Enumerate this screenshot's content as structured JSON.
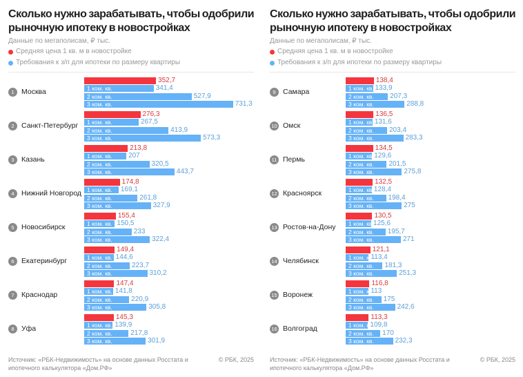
{
  "colors": {
    "price": "#f4353e",
    "salary": "#65b2f7",
    "price_text": "#d83a3a",
    "salary_text": "#5b9fd8"
  },
  "chart_data": [
    {
      "type": "bar",
      "orientation": "horizontal",
      "title": "Сколько нужно зарабатывать, чтобы одобрили рыночную ипотеку в новостройках",
      "subtitle": "Данные по мегаполисам, ₽ тыс.",
      "legend": [
        "Средняя цена 1 кв. м в новостройке",
        "Требования к з/п для ипотеки по размеру квартиры"
      ],
      "bar_labels": [
        "",
        "1 ком. кв.",
        "2 ком. кв.",
        "3 ком. кв."
      ],
      "groups": [
        {
          "rank": "1",
          "city": "Москва",
          "values": [
            "352,7",
            "341,4",
            "527,9",
            "731,3"
          ]
        },
        {
          "rank": "2",
          "city": "Санкт-Петербург",
          "values": [
            "276,3",
            "267,5",
            "413,9",
            "573,3"
          ]
        },
        {
          "rank": "3",
          "city": "Казань",
          "values": [
            "213,8",
            "207",
            "320,5",
            "443,7"
          ]
        },
        {
          "rank": "4",
          "city": "Нижний Новгород",
          "values": [
            "174,8",
            "169,1",
            "261,8",
            "327,9"
          ]
        },
        {
          "rank": "5",
          "city": "Новосибирск",
          "values": [
            "155,4",
            "150,5",
            "233",
            "322,4"
          ]
        },
        {
          "rank": "6",
          "city": "Екатеринбург",
          "values": [
            "149,4",
            "144,6",
            "223,7",
            "310,2"
          ]
        },
        {
          "rank": "7",
          "city": "Краснодар",
          "values": [
            "147,4",
            "141,8",
            "220,9",
            "305,8"
          ]
        },
        {
          "rank": "8",
          "city": "Уфа",
          "values": [
            "145,3",
            "139,9",
            "217,8",
            "301,9"
          ]
        }
      ],
      "source": "Источник: «РБК-Недвижимость» на основе данных Росстата и ипотечного калькулятора «Дом.РФ»",
      "copyright": "© РБК, 2025"
    },
    {
      "type": "bar",
      "orientation": "horizontal",
      "title": "Сколько нужно зарабатывать, чтобы одобрили рыночную ипотеку в новостройках",
      "subtitle": "Данные по мегаполисам, ₽ тыс.",
      "legend": [
        "Средняя цена 1 кв. м в новостройке",
        "Требования к з/п для ипотеки по размеру квартиры"
      ],
      "bar_labels": [
        "",
        "1 ком. кв.",
        "2 ком. кв.",
        "3 ком. кв."
      ],
      "groups": [
        {
          "rank": "9",
          "city": "Самара",
          "values": [
            "138,4",
            "133,9",
            "207,3",
            "288,8"
          ]
        },
        {
          "rank": "10",
          "city": "Омск",
          "values": [
            "136,5",
            "131,6",
            "203,4",
            "283,3"
          ]
        },
        {
          "rank": "11",
          "city": "Пермь",
          "values": [
            "134,5",
            "129,6",
            "201,5",
            "275,8"
          ]
        },
        {
          "rank": "12",
          "city": "Красноярск",
          "values": [
            "132,5",
            "128,4",
            "198,4",
            "275"
          ]
        },
        {
          "rank": "13",
          "city": "Ростов-на-Дону",
          "values": [
            "130,5",
            "125,6",
            "195,7",
            "271"
          ]
        },
        {
          "rank": "14",
          "city": "Челябинск",
          "values": [
            "121,1",
            "113,4",
            "181,3",
            "251,3"
          ]
        },
        {
          "rank": "15",
          "city": "Воронеж",
          "values": [
            "116,8",
            "113",
            "175",
            "242,6"
          ]
        },
        {
          "rank": "16",
          "city": "Волгоград",
          "values": [
            "113,3",
            "109,8",
            "170",
            "232,3"
          ]
        }
      ],
      "source": "Источник: «РБК-Недвижимость» на основе данных Росстата и ипотечного калькулятора «Дом.РФ»",
      "copyright": "© РБК, 2025"
    }
  ]
}
